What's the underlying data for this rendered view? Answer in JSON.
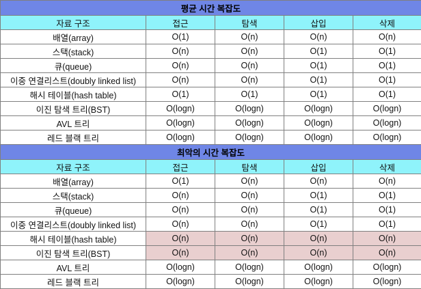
{
  "sections": [
    {
      "title": "평균 시간 복잡도",
      "headers": [
        "자료 구조",
        "접근",
        "탐색",
        "삽입",
        "삭제"
      ],
      "rows": [
        {
          "name": "배열(array)",
          "values": [
            "O(1)",
            "O(n)",
            "O(n)",
            "O(n)"
          ]
        },
        {
          "name": "스택(stack)",
          "values": [
            "O(n)",
            "O(n)",
            "O(1)",
            "O(1)"
          ]
        },
        {
          "name": "큐(queue)",
          "values": [
            "O(n)",
            "O(n)",
            "O(1)",
            "O(1)"
          ]
        },
        {
          "name": "이중 연결리스트(doubly linked list)",
          "values": [
            "O(n)",
            "O(n)",
            "O(1)",
            "O(1)"
          ]
        },
        {
          "name": "해시 테이블(hash table)",
          "values": [
            "O(1)",
            "O(1)",
            "O(1)",
            "O(1)"
          ]
        },
        {
          "name": "이진 탐색 트리(BST)",
          "values": [
            "O(logn)",
            "O(logn)",
            "O(logn)",
            "O(logn)"
          ]
        },
        {
          "name": "AVL 트리",
          "values": [
            "O(logn)",
            "O(logn)",
            "O(logn)",
            "O(logn)"
          ]
        },
        {
          "name": "레드 블랙 트리",
          "values": [
            "O(logn)",
            "O(logn)",
            "O(logn)",
            "O(logn)"
          ]
        }
      ]
    },
    {
      "title": "최악의 시간 복잡도",
      "headers": [
        "자료 구조",
        "접근",
        "탐색",
        "삽입",
        "삭제"
      ],
      "rows": [
        {
          "name": "배열(array)",
          "values": [
            "O(1)",
            "O(n)",
            "O(n)",
            "O(n)"
          ]
        },
        {
          "name": "스택(stack)",
          "values": [
            "O(n)",
            "O(n)",
            "O(1)",
            "O(1)"
          ]
        },
        {
          "name": "큐(queue)",
          "values": [
            "O(n)",
            "O(n)",
            "O(1)",
            "O(1)"
          ]
        },
        {
          "name": "이중 연결리스트(doubly linked list)",
          "values": [
            "O(n)",
            "O(n)",
            "O(1)",
            "O(1)"
          ]
        },
        {
          "name": "해시 테이블(hash table)",
          "values": [
            "O(n)",
            "O(n)",
            "O(n)",
            "O(n)"
          ],
          "highlight": true
        },
        {
          "name": "이진 탐색 트리(BST)",
          "values": [
            "O(n)",
            "O(n)",
            "O(n)",
            "O(n)"
          ],
          "highlight": true
        },
        {
          "name": "AVL 트리",
          "values": [
            "O(logn)",
            "O(logn)",
            "O(logn)",
            "O(logn)"
          ]
        },
        {
          "name": "레드 블랙 트리",
          "values": [
            "O(logn)",
            "O(logn)",
            "O(logn)",
            "O(logn)"
          ]
        }
      ]
    }
  ],
  "colors": {
    "title_bg": "#6f86e6",
    "header_bg": "#8ff3fb",
    "highlight_bg": "#e9cfcf",
    "border": "#7f7f7f"
  }
}
